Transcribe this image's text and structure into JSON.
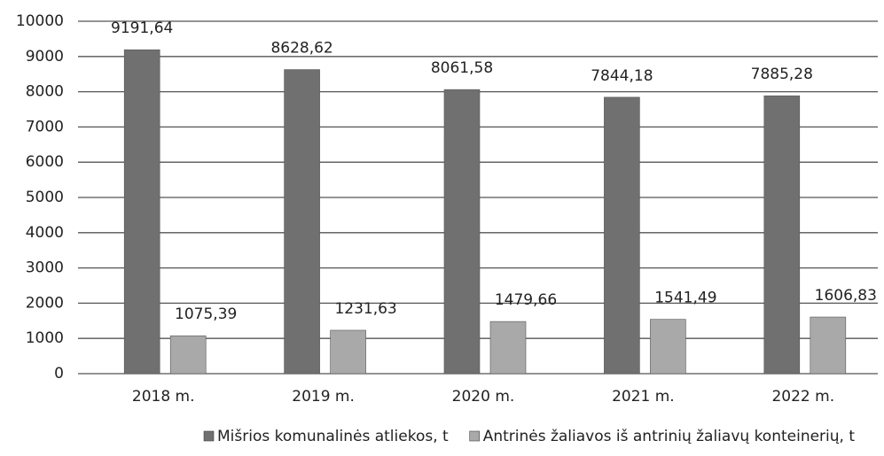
{
  "chart_data": {
    "type": "bar",
    "categories": [
      "2018 m.",
      "2019 m.",
      "2020 m.",
      "2021 m.",
      "2022 m."
    ],
    "series": [
      {
        "name": "Mišrios komunalinės atliekos, t",
        "color": "#707070",
        "values": [
          9191.64,
          8628.62,
          8061.58,
          7844.18,
          7885.28
        ],
        "value_labels": [
          "9191,64",
          "8628,62",
          "8061,58",
          "7844,18",
          "7885,28"
        ]
      },
      {
        "name": "Antrinės žaliavos iš antrinių žaliavų konteinerių, t",
        "color": "#a9a9a9",
        "values": [
          1075.39,
          1231.63,
          1479.66,
          1541.49,
          1606.83
        ],
        "value_labels": [
          "1075,39",
          "1231,63",
          "1479,66",
          "1541,49",
          "1606,83"
        ]
      }
    ],
    "ylim": [
      0,
      10000
    ],
    "yticks": [
      0,
      1000,
      2000,
      3000,
      4000,
      5000,
      6000,
      7000,
      8000,
      9000,
      10000
    ],
    "grid": true,
    "legend": "bottom"
  }
}
